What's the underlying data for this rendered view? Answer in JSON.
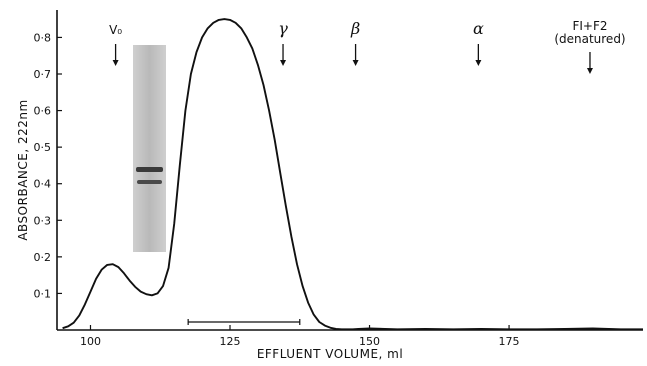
{
  "chart_data": {
    "type": "line",
    "xlabel": "EFFLUENT VOLUME, ml",
    "ylabel": "ABSORBANCE, 222nm",
    "xlim": [
      94,
      199
    ],
    "ylim": [
      0,
      0.875
    ],
    "x_ticks": [
      100,
      125,
      150,
      175
    ],
    "x_tick_labels": [
      "100",
      "125",
      "150",
      "175"
    ],
    "y_ticks": [
      0.1,
      0.2,
      0.3,
      0.4,
      0.5,
      0.6,
      0.7,
      0.8
    ],
    "y_tick_labels": [
      "0·1",
      "0·2",
      "0·3",
      "0·4",
      "0·5",
      "0·6",
      "0·7",
      "0·8"
    ],
    "grid": false,
    "series": [
      {
        "x": [
          95,
          96,
          97,
          98,
          99,
          100,
          101,
          102,
          103,
          104,
          105,
          106,
          107,
          108,
          109,
          110,
          111,
          112,
          113,
          114,
          115,
          116,
          117,
          118,
          119,
          120,
          121,
          122,
          123,
          124,
          125,
          126,
          127,
          128,
          129,
          130,
          131,
          132,
          133,
          134,
          135,
          136,
          137,
          138,
          139,
          140,
          141,
          142,
          143,
          144,
          145,
          146,
          147,
          148,
          150,
          155,
          160,
          165,
          170,
          175,
          180,
          185,
          190,
          195,
          199
        ],
        "values": [
          0.005,
          0.01,
          0.02,
          0.04,
          0.07,
          0.105,
          0.14,
          0.165,
          0.178,
          0.18,
          0.172,
          0.155,
          0.135,
          0.118,
          0.105,
          0.098,
          0.095,
          0.1,
          0.12,
          0.17,
          0.29,
          0.45,
          0.6,
          0.7,
          0.76,
          0.8,
          0.825,
          0.84,
          0.848,
          0.85,
          0.848,
          0.84,
          0.825,
          0.8,
          0.77,
          0.725,
          0.67,
          0.6,
          0.52,
          0.43,
          0.34,
          0.255,
          0.18,
          0.12,
          0.075,
          0.042,
          0.022,
          0.012,
          0.006,
          0.003,
          0.002,
          0.002,
          0.002,
          0.003,
          0.004,
          0.002,
          0.003,
          0.002,
          0.003,
          0.002,
          0.002,
          0.003,
          0.004,
          0.002,
          0.002
        ]
      }
    ],
    "markers": [
      {
        "label": "V₀",
        "kind": "text",
        "x": 104.5
      },
      {
        "label": "γ",
        "kind": "greek",
        "x": 134.5
      },
      {
        "label": "β",
        "kind": "greek",
        "x": 147.5
      },
      {
        "label": "α",
        "kind": "greek",
        "x": 169.5
      },
      {
        "label": "FI+F2",
        "sublabel": "(denatured)",
        "kind": "text",
        "x": 189.5
      }
    ],
    "pooled_range": [
      117.5,
      137.5
    ]
  }
}
